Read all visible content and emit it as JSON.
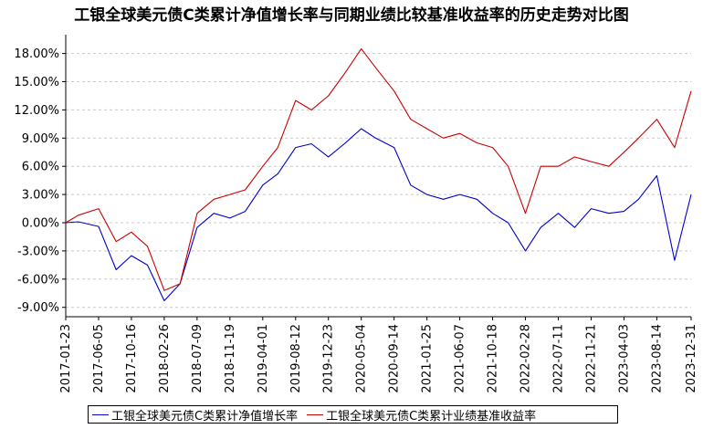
{
  "chart_data": {
    "type": "line",
    "title": "工银全球美元债C类累计净值增长率与同期业绩比较基准收益率的历史走势对比图",
    "ylim": [
      -0.1,
      0.2
    ],
    "y_ticks": [
      -0.09,
      -0.06,
      -0.03,
      0.0,
      0.03,
      0.06,
      0.09,
      0.12,
      0.15,
      0.18
    ],
    "y_tick_labels": [
      "-9.00%",
      "-6.00%",
      "-3.00%",
      "0.00%",
      "3.00%",
      "6.00%",
      "9.00%",
      "12.00%",
      "15.00%",
      "18.00%"
    ],
    "x_tick_labels": [
      "2017-01-23",
      "2017-06-05",
      "2017-10-16",
      "2018-02-26",
      "2018-07-09",
      "2018-11-19",
      "2019-04-01",
      "2019-08-12",
      "2019-12-23",
      "2020-05-04",
      "2020-09-14",
      "2021-01-25",
      "2021-06-07",
      "2021-10-18",
      "2022-02-28",
      "2022-07-11",
      "2022-11-21",
      "2023-04-03",
      "2023-08-14",
      "2023-12-31"
    ],
    "grid": true,
    "legend_position": "bottom",
    "series": [
      {
        "name": "工银全球美元债C类累计净值增长率",
        "color": "#0000cc",
        "x": [
          "2017-01-23",
          "2017-03-15",
          "2017-06-05",
          "2017-08-15",
          "2017-10-16",
          "2017-12-20",
          "2018-02-26",
          "2018-05-01",
          "2018-07-09",
          "2018-09-15",
          "2018-11-19",
          "2019-01-20",
          "2019-04-01",
          "2019-06-01",
          "2019-08-12",
          "2019-10-15",
          "2019-12-23",
          "2020-03-01",
          "2020-05-04",
          "2020-07-01",
          "2020-09-14",
          "2020-11-20",
          "2021-01-25",
          "2021-04-01",
          "2021-06-07",
          "2021-08-15",
          "2021-10-18",
          "2021-12-20",
          "2022-02-28",
          "2022-05-01",
          "2022-07-11",
          "2022-09-15",
          "2022-11-21",
          "2023-02-01",
          "2023-04-03",
          "2023-06-01",
          "2023-08-14",
          "2023-10-25",
          "2023-12-31"
        ],
        "y": [
          0.0,
          0.001,
          -0.004,
          -0.05,
          -0.035,
          -0.045,
          -0.083,
          -0.065,
          -0.005,
          0.01,
          0.005,
          0.012,
          0.04,
          0.052,
          0.08,
          0.084,
          0.07,
          0.085,
          0.1,
          0.09,
          0.08,
          0.04,
          0.03,
          0.025,
          0.03,
          0.025,
          0.01,
          0.0,
          -0.03,
          -0.005,
          0.01,
          -0.005,
          0.015,
          0.01,
          0.012,
          0.025,
          0.05,
          -0.04,
          0.03
        ]
      },
      {
        "name": "工银全球美元债C类累计业绩基准收益率",
        "color": "#cc0000",
        "x": [
          "2017-01-23",
          "2017-03-15",
          "2017-06-05",
          "2017-08-15",
          "2017-10-16",
          "2017-12-20",
          "2018-02-26",
          "2018-05-01",
          "2018-07-09",
          "2018-09-15",
          "2018-11-19",
          "2019-01-20",
          "2019-04-01",
          "2019-06-01",
          "2019-08-12",
          "2019-10-15",
          "2019-12-23",
          "2020-03-01",
          "2020-05-04",
          "2020-07-01",
          "2020-09-14",
          "2020-11-20",
          "2021-01-25",
          "2021-04-01",
          "2021-06-07",
          "2021-08-15",
          "2021-10-18",
          "2021-12-20",
          "2022-02-28",
          "2022-05-01",
          "2022-07-11",
          "2022-09-15",
          "2022-11-21",
          "2023-02-01",
          "2023-04-03",
          "2023-06-01",
          "2023-08-14",
          "2023-10-25",
          "2023-12-31"
        ],
        "y": [
          0.0,
          0.008,
          0.015,
          -0.02,
          -0.01,
          -0.025,
          -0.072,
          -0.065,
          0.01,
          0.025,
          0.03,
          0.035,
          0.06,
          0.08,
          0.13,
          0.12,
          0.135,
          0.16,
          0.185,
          0.165,
          0.14,
          0.11,
          0.1,
          0.09,
          0.095,
          0.085,
          0.08,
          0.06,
          0.01,
          0.06,
          0.06,
          0.07,
          0.065,
          0.06,
          0.075,
          0.09,
          0.11,
          0.08,
          0.14
        ]
      }
    ]
  }
}
